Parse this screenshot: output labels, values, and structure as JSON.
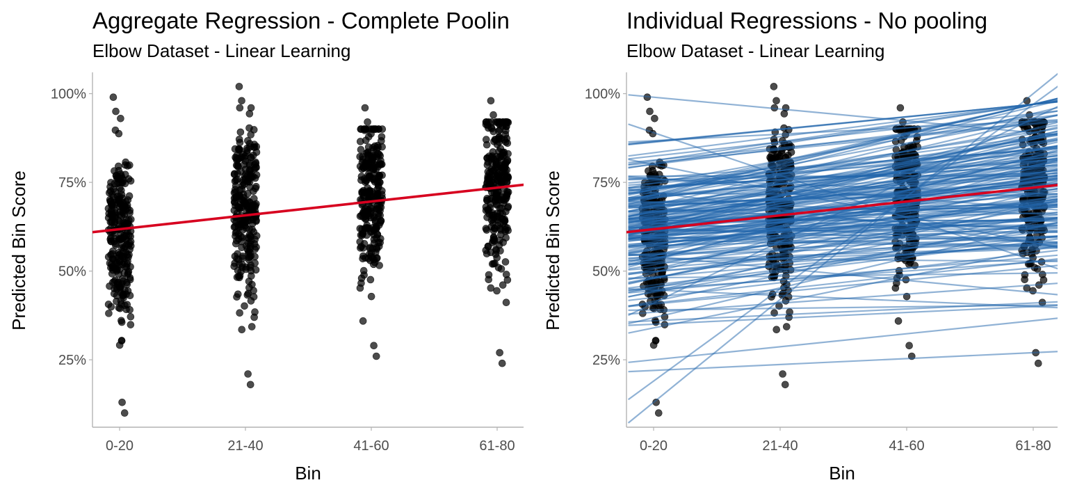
{
  "colors": {
    "points": "#000000",
    "aggregate_line": "#d7001f",
    "individual_lines": "#2166ac",
    "axis": "#b3b3b3"
  },
  "chart_data": [
    {
      "type": "scatter",
      "title": "Aggregate Regression - Complete Poolin",
      "subtitle": "Elbow Dataset - Linear Learning",
      "xlabel": "Bin",
      "ylabel": "Predicted Bin Score",
      "categories": [
        "0-20",
        "21-40",
        "41-60",
        "61-80"
      ],
      "y_ticks": [
        "25%",
        "50%",
        "75%",
        "100%"
      ],
      "y_tick_values": [
        25,
        50,
        75,
        100
      ],
      "ylim": [
        6,
        106
      ],
      "grid": false,
      "points_per_bin_approx": 260,
      "points_summary": {
        "0-20": {
          "min": 10,
          "max": 99,
          "center": 60
        },
        "21-40": {
          "min": 18,
          "max": 102,
          "center": 68
        },
        "41-60": {
          "min": 26,
          "max": 96,
          "center": 70
        },
        "61-80": {
          "min": 24,
          "max": 98,
          "center": 74
        }
      },
      "regression": {
        "name": "Complete pooling",
        "intercept_at_0-20": 61.8,
        "slope_per_bin": 3.9
      }
    },
    {
      "type": "scatter",
      "title": "Individual Regressions - No pooling",
      "subtitle": "Elbow Dataset - Linear Learning",
      "xlabel": "Bin",
      "ylabel": "Predicted Bin Score",
      "categories": [
        "0-20",
        "21-40",
        "41-60",
        "61-80"
      ],
      "y_ticks": [
        "25%",
        "50%",
        "75%",
        "100%"
      ],
      "y_tick_values": [
        25,
        50,
        75,
        100
      ],
      "ylim": [
        6,
        106
      ],
      "grid": false,
      "points_same_as_left_panel": true,
      "individual_lines_approx_count": 180,
      "individual_lines_sample": [
        {
          "start": 13,
          "end": 100
        },
        {
          "start": 19,
          "end": 97
        },
        {
          "start": 22,
          "end": 27
        },
        {
          "start": 25,
          "end": 36
        },
        {
          "start": 36,
          "end": 41
        },
        {
          "start": 41,
          "end": 93
        },
        {
          "start": 62,
          "end": 75
        },
        {
          "start": 80,
          "end": 58
        },
        {
          "start": 89,
          "end": 53
        },
        {
          "start": 99,
          "end": 89
        }
      ],
      "regression": {
        "name": "Complete pooling",
        "intercept_at_0-20": 61.8,
        "slope_per_bin": 3.9
      }
    }
  ]
}
